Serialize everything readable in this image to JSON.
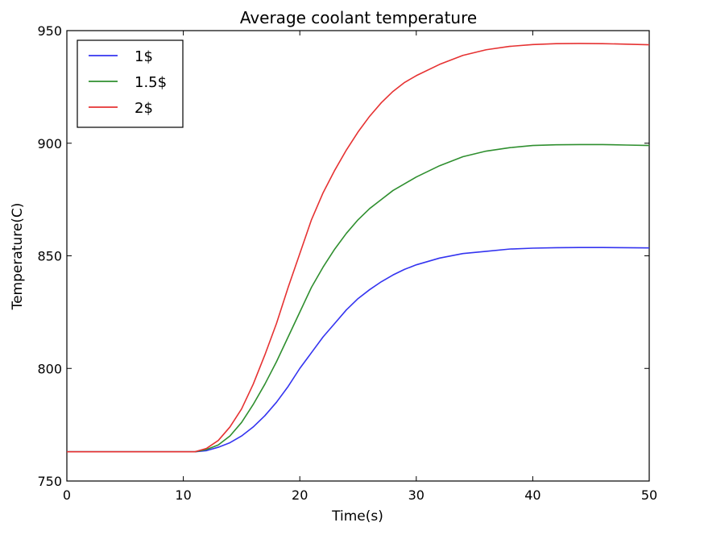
{
  "chart_data": {
    "type": "line",
    "title": "Average coolant temperature",
    "xlabel": "Time(s)",
    "ylabel": "Temperature(C)",
    "xlim": [
      0,
      50
    ],
    "ylim": [
      750,
      950
    ],
    "xticks": [
      0,
      10,
      20,
      30,
      40,
      50
    ],
    "xtick_labels": [
      "0",
      "10",
      "20",
      "30",
      "40",
      "50"
    ],
    "yticks": [
      750,
      800,
      850,
      900,
      950
    ],
    "ytick_labels": [
      "750",
      "800",
      "850",
      "900",
      "950"
    ],
    "grid": false,
    "legend_position": "upper-left",
    "series": [
      {
        "name": "1$",
        "color": "#3434f0",
        "x": [
          0,
          5,
          10,
          11,
          12,
          13,
          14,
          15,
          16,
          17,
          18,
          19,
          20,
          21,
          22,
          23,
          24,
          25,
          26,
          27,
          28,
          29,
          30,
          32,
          34,
          36,
          38,
          40,
          42,
          44,
          46,
          48,
          50
        ],
        "y": [
          763,
          763,
          763,
          763,
          763.5,
          765,
          767,
          770,
          774,
          779,
          785,
          792,
          800,
          807,
          814,
          820,
          826,
          831,
          835,
          838.5,
          841.5,
          844,
          846,
          849,
          851,
          852,
          853,
          853.4,
          853.6,
          853.7,
          853.7,
          853.6,
          853.5
        ]
      },
      {
        "name": "1.5$",
        "color": "#2f8f2f",
        "x": [
          0,
          5,
          10,
          11,
          12,
          13,
          14,
          15,
          16,
          17,
          18,
          19,
          20,
          21,
          22,
          23,
          24,
          25,
          26,
          27,
          28,
          29,
          30,
          32,
          34,
          36,
          38,
          40,
          42,
          44,
          46,
          48,
          50
        ],
        "y": [
          763,
          763,
          763,
          763,
          764,
          766,
          770,
          776,
          784,
          793,
          803,
          814,
          825,
          836,
          845,
          853,
          860,
          866,
          871,
          875,
          879,
          882,
          885,
          890,
          894,
          896.5,
          898,
          899,
          899.3,
          899.4,
          899.4,
          899.2,
          899
        ]
      },
      {
        "name": "2$",
        "color": "#e63232",
        "x": [
          0,
          5,
          10,
          11,
          12,
          13,
          14,
          15,
          16,
          17,
          18,
          19,
          20,
          21,
          22,
          23,
          24,
          25,
          26,
          27,
          28,
          29,
          30,
          32,
          34,
          36,
          38,
          40,
          42,
          44,
          46,
          48,
          50
        ],
        "y": [
          763,
          763,
          763,
          763,
          764.5,
          768,
          774,
          782,
          793,
          806,
          820,
          836,
          851,
          866,
          878,
          888,
          897,
          905,
          912,
          918,
          923,
          927,
          930,
          935,
          939,
          941.5,
          943,
          943.8,
          944.2,
          944.3,
          944.2,
          944,
          943.7
        ]
      }
    ]
  }
}
